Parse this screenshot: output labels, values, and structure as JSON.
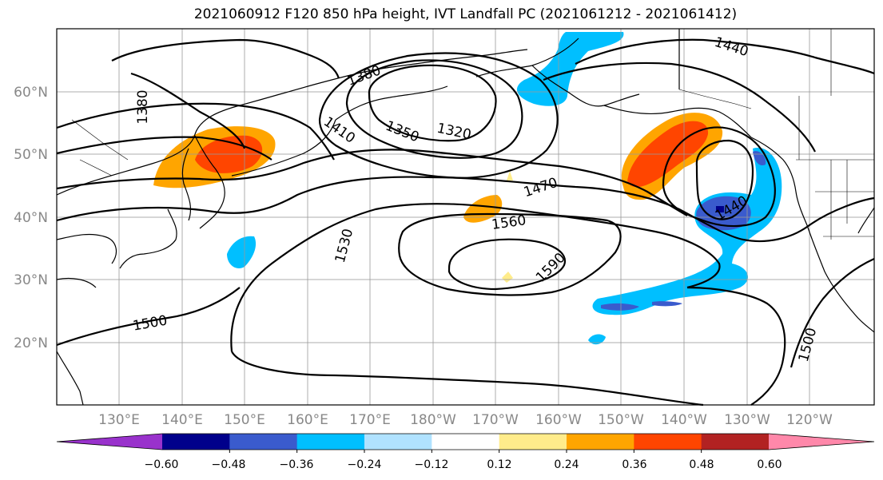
{
  "title": "2021060912 F120 850 hPa height, IVT Landfall PC (2021061212 - 2021061412)",
  "map": {
    "lat_labels": [
      "60°N",
      "50°N",
      "40°N",
      "30°N",
      "20°N"
    ],
    "lon_labels": [
      "130°E",
      "140°E",
      "150°E",
      "160°E",
      "170°E",
      "180°W",
      "170°W",
      "160°W",
      "150°W",
      "140°W",
      "130°W",
      "120°W"
    ],
    "contour_labels": [
      "1380",
      "1380",
      "1410",
      "1350",
      "1320",
      "1470",
      "1440",
      "1440",
      "1560",
      "1530",
      "1590",
      "1500",
      "1500"
    ]
  },
  "colorbar": {
    "ticks": [
      "−0.60",
      "−0.48",
      "−0.36",
      "−0.24",
      "−0.12",
      "0.12",
      "0.24",
      "0.36",
      "0.48",
      "0.60"
    ],
    "colors": [
      "#9932cc",
      "#00008b",
      "#3a5bcd",
      "#00bfff",
      "#b0e2ff",
      "#ffffff",
      "#ffec8b",
      "#ffa500",
      "#ff4500",
      "#b22222",
      "#ff88aa"
    ]
  },
  "fill_colors": {
    "orange": "#ffa500",
    "red_orange": "#ff4500",
    "yellow": "#ffec8b",
    "light_blue": "#00bfff",
    "blue": "#3a5bcd",
    "dark_blue": "#00008b"
  }
}
